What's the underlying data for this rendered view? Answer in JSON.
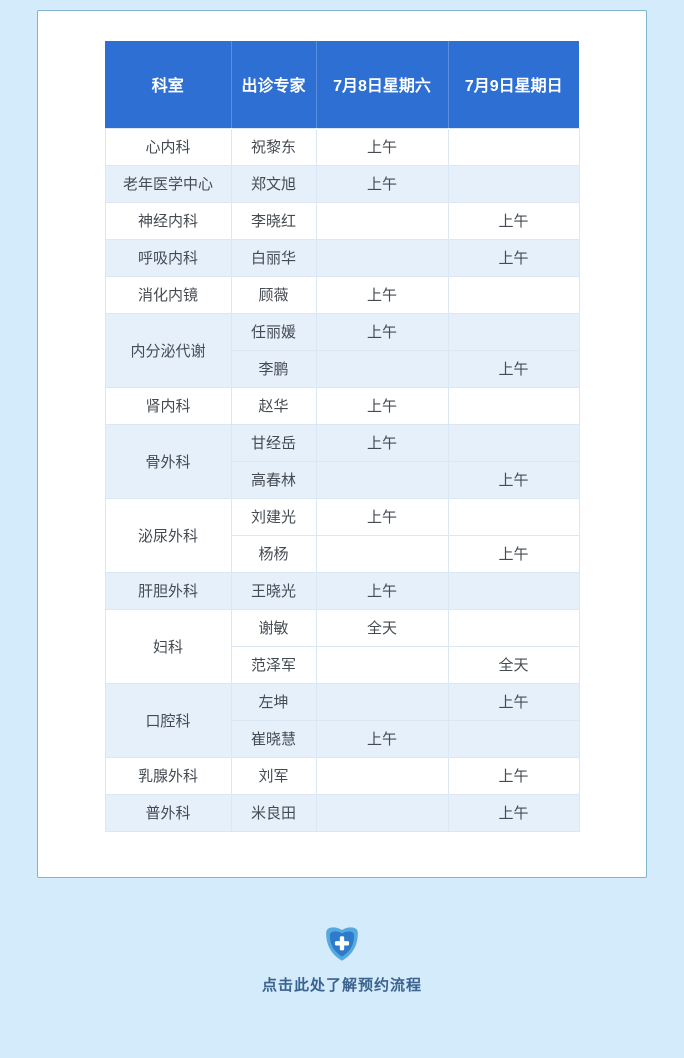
{
  "page": {
    "background_color": "#d3ebfa",
    "card_background": "#ffffff",
    "card_border_color": "#7fb6ce"
  },
  "table": {
    "header_bg_color": "#2d6fd2",
    "shaded_row_color": "#e6f0fb",
    "headers": [
      "科室",
      "出诊专家",
      "7月8日星期六",
      "7月9日星期日"
    ],
    "groups": [
      {
        "department": "心内科",
        "shaded": false,
        "rows": [
          {
            "expert": "祝黎东",
            "sat": "上午",
            "sun": ""
          }
        ]
      },
      {
        "department": "老年医学中心",
        "shaded": true,
        "rows": [
          {
            "expert": "郑文旭",
            "sat": "上午",
            "sun": ""
          }
        ]
      },
      {
        "department": "神经内科",
        "shaded": false,
        "rows": [
          {
            "expert": "李晓红",
            "sat": "",
            "sun": "上午"
          }
        ]
      },
      {
        "department": "呼吸内科",
        "shaded": true,
        "rows": [
          {
            "expert": "白丽华",
            "sat": "",
            "sun": "上午"
          }
        ]
      },
      {
        "department": "消化内镜",
        "shaded": false,
        "rows": [
          {
            "expert": "顾薇",
            "sat": "上午",
            "sun": ""
          }
        ]
      },
      {
        "department": "内分泌代谢",
        "shaded": true,
        "rows": [
          {
            "expert": "任丽媛",
            "sat": "上午",
            "sun": ""
          },
          {
            "expert": "李鹏",
            "sat": "",
            "sun": "上午"
          }
        ]
      },
      {
        "department": "肾内科",
        "shaded": false,
        "rows": [
          {
            "expert": "赵华",
            "sat": "上午",
            "sun": ""
          }
        ]
      },
      {
        "department": "骨外科",
        "shaded": true,
        "rows": [
          {
            "expert": "甘经岳",
            "sat": "上午",
            "sun": ""
          },
          {
            "expert": "高春林",
            "sat": "",
            "sun": "上午"
          }
        ]
      },
      {
        "department": "泌尿外科",
        "shaded": false,
        "rows": [
          {
            "expert": "刘建光",
            "sat": "上午",
            "sun": ""
          },
          {
            "expert": "杨杨",
            "sat": "",
            "sun": "上午"
          }
        ]
      },
      {
        "department": "肝胆外科",
        "shaded": true,
        "rows": [
          {
            "expert": "王晓光",
            "sat": "上午",
            "sun": ""
          }
        ]
      },
      {
        "department": "妇科",
        "shaded": false,
        "rows": [
          {
            "expert": "谢敏",
            "sat": "全天",
            "sun": ""
          },
          {
            "expert": "范泽军",
            "sat": "",
            "sun": "全天"
          }
        ]
      },
      {
        "department": "口腔科",
        "shaded": true,
        "rows": [
          {
            "expert": "左坤",
            "sat": "",
            "sun": "上午"
          },
          {
            "expert": "崔晓慧",
            "sat": "上午",
            "sun": ""
          }
        ]
      },
      {
        "department": "乳腺外科",
        "shaded": false,
        "rows": [
          {
            "expert": "刘军",
            "sat": "",
            "sun": "上午"
          }
        ]
      },
      {
        "department": "普外科",
        "shaded": true,
        "rows": [
          {
            "expert": "米良田",
            "sat": "",
            "sun": "上午"
          }
        ]
      }
    ]
  },
  "footer": {
    "link_text": "点击此处了解预约流程",
    "icon": "medical-shield-plus-icon",
    "icon_outer_color": "#55a9de",
    "icon_inner_color": "#2d7bca",
    "text_color": "#3b638e"
  }
}
